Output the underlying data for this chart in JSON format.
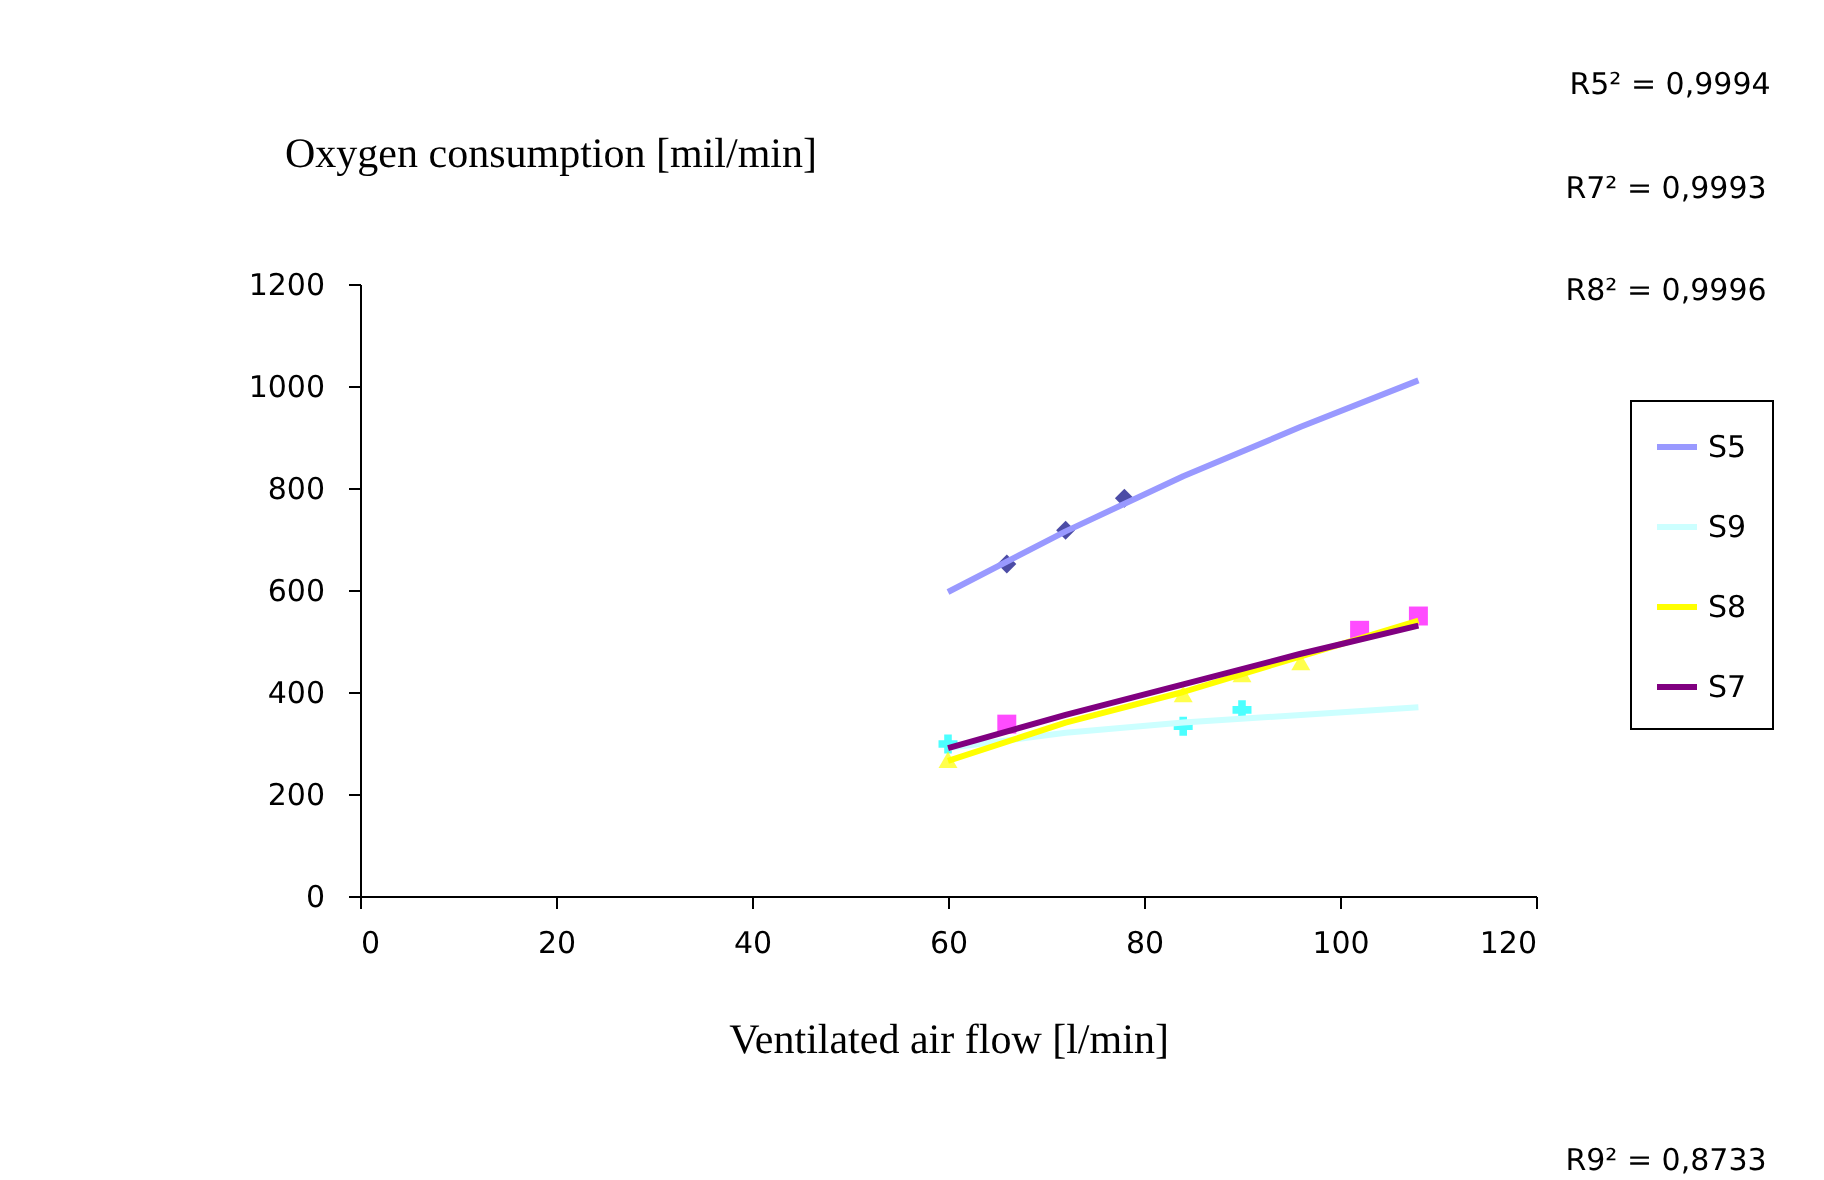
{
  "chart_data": {
    "type": "line",
    "xlabel": "Ventilated air flow [l/min]",
    "ylabel": "Oxygen consumption [mil/min]",
    "xlim": [
      0,
      120
    ],
    "xticks": [
      0,
      20,
      40,
      60,
      80,
      100,
      120
    ],
    "ylim": [
      0,
      1200
    ],
    "yticks": [
      0,
      200,
      400,
      600,
      800,
      1000,
      1200
    ],
    "legend": "right",
    "line_style": "solid",
    "annotations": [
      "R5² = 0,9994",
      "R7² = 0,9993",
      "R8² = 0,9996",
      "R9² = 0,8733"
    ],
    "series": [
      {
        "name": "S5",
        "color": "#9999ff",
        "x": [
          60,
          72,
          84,
          96,
          108
        ],
        "values": [
          596,
          715,
          823,
          920,
          1011
        ]
      },
      {
        "name": "S9",
        "color": "#ccffff",
        "x": [
          60,
          72,
          84,
          96,
          108
        ],
        "values": [
          290,
          320,
          340,
          355,
          370
        ]
      },
      {
        "name": "S8",
        "color": "#ffff00",
        "x": [
          60,
          72,
          84,
          96,
          108
        ],
        "values": [
          265,
          340,
          400,
          470,
          540
        ]
      },
      {
        "name": "S7",
        "color": "#800080",
        "x": [
          60,
          72,
          84,
          96,
          108
        ],
        "values": [
          290,
          355,
          415,
          475,
          530
        ]
      },
      {
        "type": "scatter",
        "color": "#000080",
        "marker": "diamond",
        "x": [
          66,
          72,
          78
        ],
        "values": [
          651,
          717,
          780
        ]
      },
      {
        "type": "scatter",
        "color": "#00ffff",
        "marker": "cross",
        "x": [
          60,
          84,
          90
        ],
        "values": [
          298,
          333,
          365
        ]
      },
      {
        "type": "scatter",
        "color": "#ffff00",
        "marker": "triangle",
        "x": [
          60,
          84,
          90,
          96
        ],
        "values": [
          267,
          396,
          435,
          459
        ]
      },
      {
        "type": "scatter",
        "color": "#ff00ff",
        "marker": "square",
        "x": [
          66,
          102,
          108
        ],
        "values": [
          337,
          521,
          549
        ]
      }
    ]
  }
}
